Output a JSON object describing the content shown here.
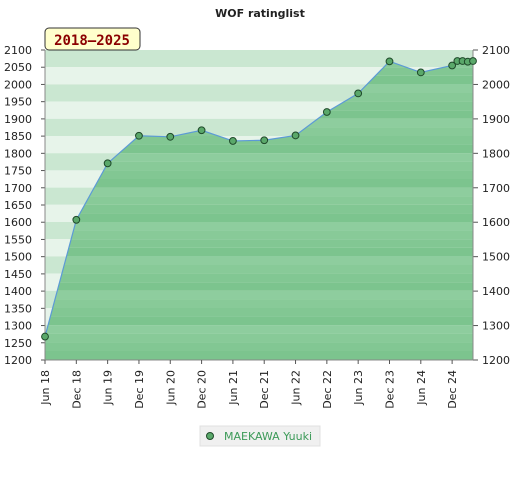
{
  "chart_data": {
    "type": "area",
    "title": "WOF ratinglist",
    "badge": "2018–2025",
    "xlabel": "",
    "ylabel": "",
    "ylim": [
      1200,
      2100
    ],
    "y_ticks": [
      1200,
      1250,
      1300,
      1350,
      1400,
      1450,
      1500,
      1550,
      1600,
      1650,
      1700,
      1750,
      1800,
      1850,
      1900,
      1950,
      2000,
      2050,
      2100
    ],
    "y_ticks_right": [
      1200,
      1300,
      1400,
      1500,
      1600,
      1700,
      1800,
      1900,
      2000,
      2100
    ],
    "x_tick_labels": [
      "Jun 18",
      "Dec 18",
      "Jun 19",
      "Dec 19",
      "Jun 20",
      "Dec 20",
      "Jun 21",
      "Dec 21",
      "Jun 22",
      "Dec 22",
      "Jun 23",
      "Dec 23",
      "Jun 24",
      "Dec 24"
    ],
    "x_tick_dates": [
      "2018-06",
      "2018-12",
      "2019-06",
      "2019-12",
      "2020-06",
      "2020-12",
      "2021-06",
      "2021-12",
      "2022-06",
      "2022-12",
      "2023-06",
      "2023-12",
      "2024-06",
      "2024-12"
    ],
    "x_range": [
      "2018-06",
      "2025-04"
    ],
    "grid": true,
    "legend_position": "bottom-center",
    "colors": {
      "line": "#5c9ad6",
      "marker_fill": "#5aa86a",
      "marker_stroke": "#1f4a2a",
      "legend_text": "#3c9a58",
      "badge_bg": "#ffffcc",
      "badge_text": "#8b0000"
    },
    "series": [
      {
        "name": "MAEKAWA Yuuki",
        "points": [
          {
            "x": "2018-06",
            "y": 1268
          },
          {
            "x": "2018-12",
            "y": 1607
          },
          {
            "x": "2019-06",
            "y": 1771
          },
          {
            "x": "2019-12",
            "y": 1851
          },
          {
            "x": "2020-06",
            "y": 1848
          },
          {
            "x": "2020-12",
            "y": 1867
          },
          {
            "x": "2021-06",
            "y": 1836
          },
          {
            "x": "2021-12",
            "y": 1838
          },
          {
            "x": "2022-06",
            "y": 1852
          },
          {
            "x": "2022-12",
            "y": 1920
          },
          {
            "x": "2023-06",
            "y": 1974
          },
          {
            "x": "2023-12",
            "y": 2067
          },
          {
            "x": "2024-06",
            "y": 2035
          },
          {
            "x": "2024-12",
            "y": 2055
          },
          {
            "x": "2025-01",
            "y": 2068
          },
          {
            "x": "2025-02",
            "y": 2068
          },
          {
            "x": "2025-03",
            "y": 2066
          },
          {
            "x": "2025-04",
            "y": 2068
          }
        ]
      }
    ]
  }
}
